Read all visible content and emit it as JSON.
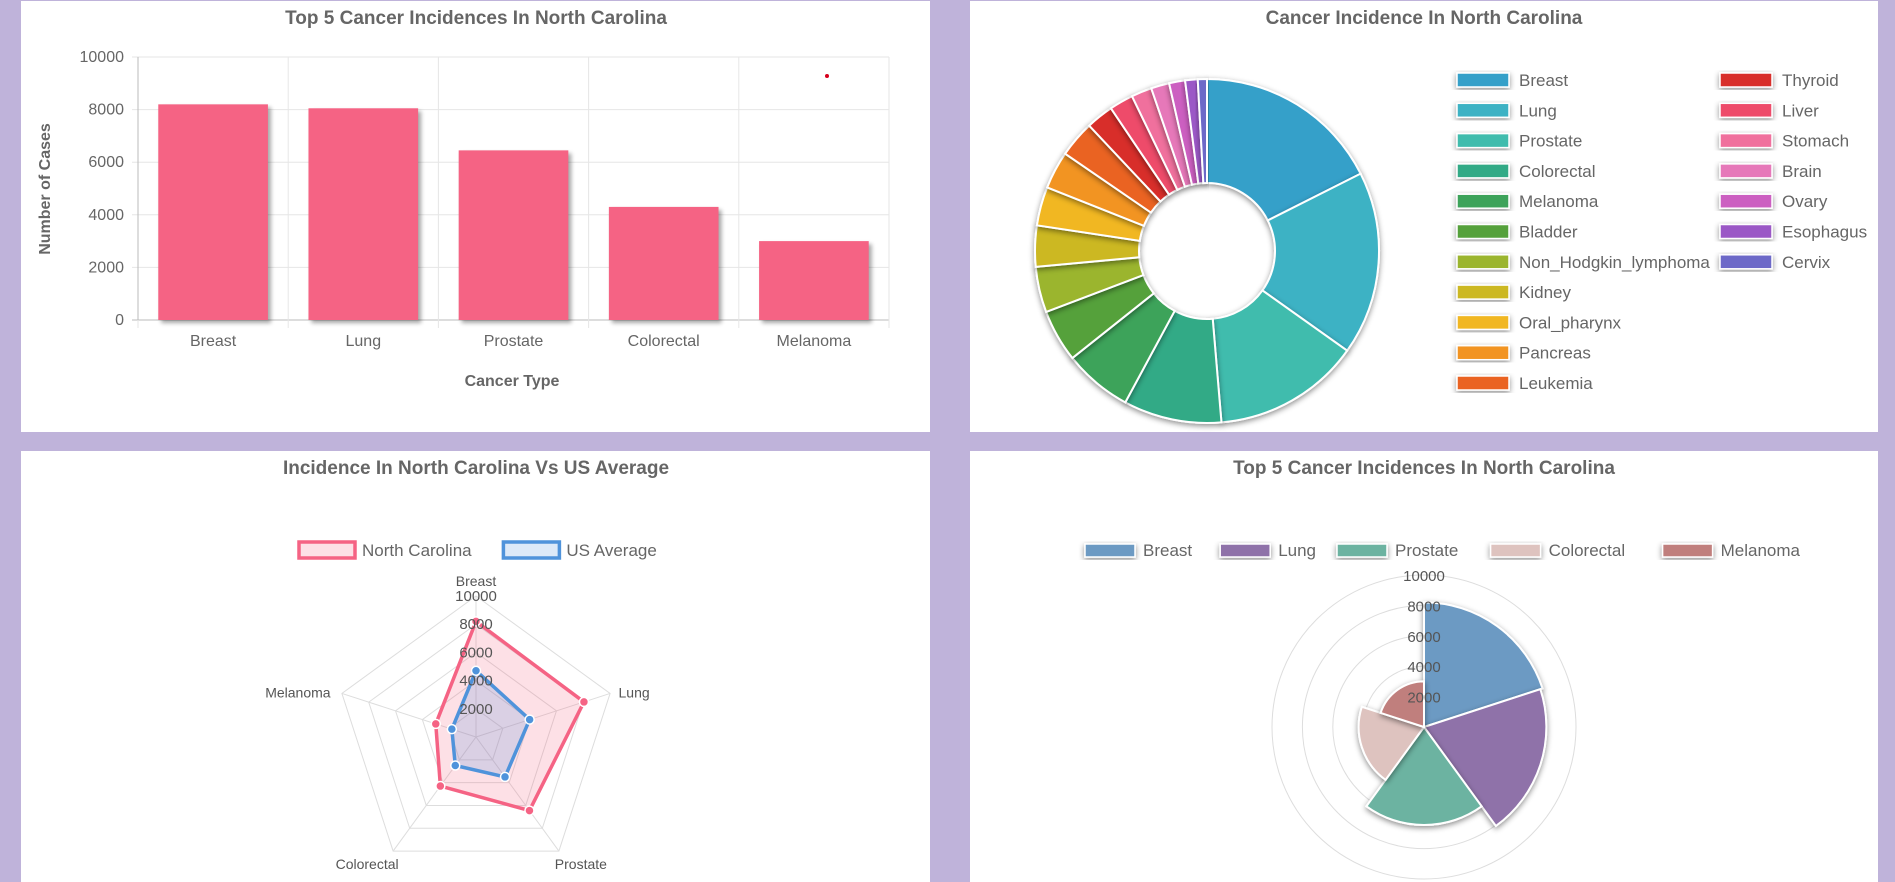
{
  "chart_data": [
    {
      "type": "bar",
      "title": "Top 5 Cancer Incidences In North Carolina",
      "xlabel": "Cancer Type",
      "ylabel": "Number of Cases",
      "categories": [
        "Breast",
        "Lung",
        "Prostate",
        "Colorectal",
        "Melanoma"
      ],
      "values": [
        8200,
        8050,
        6450,
        4300,
        3000
      ],
      "ylim": [
        0,
        10000
      ],
      "yticks": [
        "0",
        "2000",
        "4000",
        "6000",
        "8000",
        "10000"
      ],
      "color": "#f56384",
      "grid": true
    },
    {
      "type": "pie",
      "title": "Cancer Incidence In North Carolina",
      "labels": [
        "Breast",
        "Lung",
        "Prostate",
        "Colorectal",
        "Melanoma",
        "Bladder",
        "Non_Hodgkin_lymphoma",
        "Kidney",
        "Oral_pharynx",
        "Pancreas",
        "Leukemia",
        "Thyroid",
        "Liver",
        "Stomach",
        "Brain",
        "Ovary",
        "Esophagus",
        "Cervix"
      ],
      "values": [
        8200,
        8050,
        6450,
        4300,
        3000,
        2300,
        2000,
        1800,
        1700,
        1650,
        1600,
        1200,
        1050,
        900,
        800,
        700,
        550,
        400
      ],
      "colors": [
        "#36a0c9",
        "#3eb2c4",
        "#40bcad",
        "#33aa86",
        "#3da35a",
        "#55a13a",
        "#9bb52e",
        "#ccb824",
        "#f1b722",
        "#f29420",
        "#ea6422",
        "#d82e2c",
        "#ee4b6a",
        "#f06f9d",
        "#e678b9",
        "#cc5fc1",
        "#9b59c6",
        "#6d69c8"
      ],
      "legend": "right"
    },
    {
      "type": "radar",
      "title": "Incidence In North Carolina Vs US Average",
      "axes": [
        "Breast",
        "Lung",
        "Prostate",
        "Colorectal",
        "Melanoma"
      ],
      "rlim": [
        0,
        10000
      ],
      "rticks": [
        "2000",
        "4000",
        "6000",
        "8000",
        "10000"
      ],
      "series": [
        {
          "name": "North Carolina",
          "values": [
            8200,
            8050,
            6450,
            4300,
            3000
          ],
          "color": "#f56384",
          "fill": "rgba(245,99,132,0.2)"
        },
        {
          "name": "US Average",
          "values": [
            4700,
            4000,
            3500,
            2500,
            1800
          ],
          "color": "#4f93db",
          "fill": "rgba(79,147,219,0.2)"
        }
      ],
      "legend": "top"
    },
    {
      "type": "polarArea",
      "title": "Top 5 Cancer Incidences In North Carolina",
      "labels": [
        "Breast",
        "Lung",
        "Prostate",
        "Colorectal",
        "Melanoma"
      ],
      "values": [
        8200,
        8050,
        6450,
        4300,
        3000
      ],
      "colors": [
        "#6c9ac3",
        "#8f72a9",
        "#6cb3a1",
        "#dec3bf",
        "#c07f7d"
      ],
      "rlim": [
        0,
        10000
      ],
      "rticks": [
        "2000",
        "4000",
        "6000",
        "8000",
        "10000"
      ],
      "legend": "top"
    }
  ]
}
